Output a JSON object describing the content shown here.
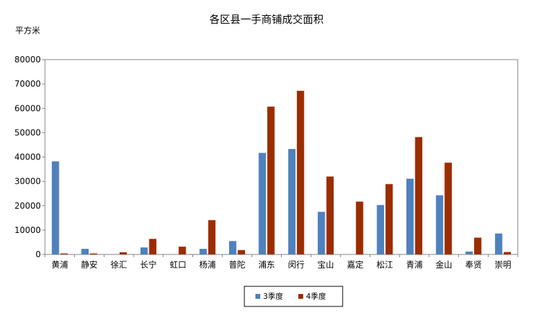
{
  "chart_data": {
    "type": "bar",
    "title": "各区县一手商铺成交面积",
    "ylabel": "平方米",
    "xlabel": "",
    "ylim": [
      0,
      80000
    ],
    "yticks": [
      0,
      10000,
      20000,
      30000,
      40000,
      50000,
      60000,
      70000,
      80000
    ],
    "grid": false,
    "legend_position": "bottom-center",
    "categories": [
      "黄浦",
      "静安",
      "徐汇",
      "长宁",
      "虹口",
      "杨浦",
      "普陀",
      "浦东",
      "闵行",
      "宝山",
      "嘉定",
      "松江",
      "青浦",
      "金山",
      "奉贤",
      "崇明"
    ],
    "series": [
      {
        "name": "3季度",
        "color": "#4F81BD",
        "values": [
          38200,
          2300,
          0,
          2900,
          0,
          2300,
          5500,
          41700,
          43300,
          17500,
          0,
          20300,
          31100,
          24300,
          1200,
          8600
        ]
      },
      {
        "name": "4季度",
        "color": "#9B2D00",
        "values": [
          400,
          400,
          900,
          6400,
          3200,
          14100,
          1800,
          60700,
          67200,
          32000,
          21700,
          28900,
          48200,
          37700,
          6900,
          1000
        ]
      }
    ]
  }
}
